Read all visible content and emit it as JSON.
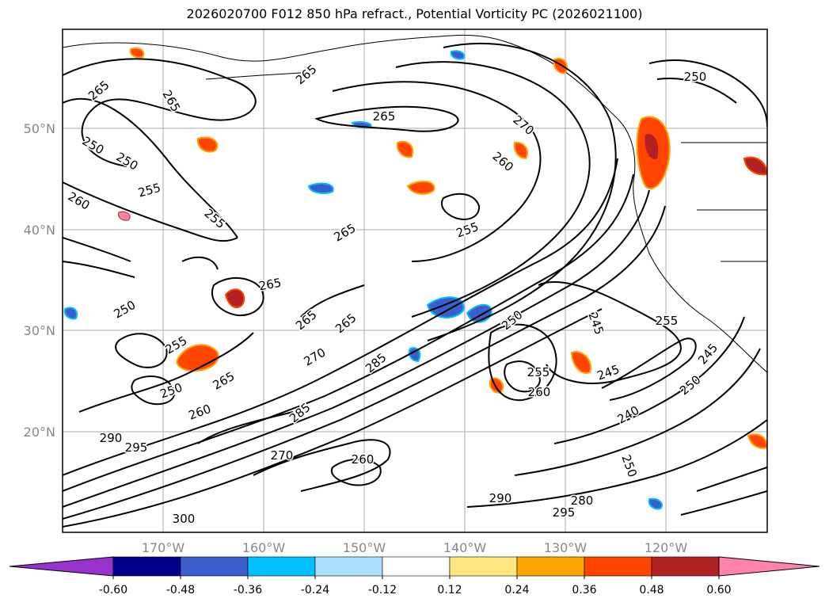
{
  "title": "2026020700 F012 850 hPa refract., Potential Vorticity PC (2026021100)",
  "latitude_labels": [
    "50°N",
    "40°N",
    "30°N",
    "20°N"
  ],
  "longitude_labels": [
    "170°W",
    "160°W",
    "150°W",
    "140°W",
    "130°W",
    "120°W"
  ],
  "contour_labels": [
    "265",
    "265",
    "265",
    "265",
    "270",
    "260",
    "255",
    "255",
    "250",
    "250",
    "255",
    "260",
    "265",
    "265",
    "265",
    "265",
    "270",
    "255",
    "250",
    "250",
    "260",
    "265",
    "285",
    "285",
    "290",
    "295",
    "270",
    "260",
    "300",
    "290",
    "295",
    "280",
    "250",
    "245",
    "245",
    "255",
    "250",
    "240",
    "245",
    "250",
    "255",
    "260",
    "250"
  ],
  "colorbar": {
    "ticks": [
      "-0.60",
      "-0.48",
      "-0.36",
      "-0.24",
      "-0.12",
      "0.12",
      "0.24",
      "0.36",
      "0.48",
      "0.60"
    ],
    "colors": [
      "#9932CC",
      "#00008B",
      "#3A5FCD",
      "#00BFFF",
      "#ADDFFF",
      "#FFFFFF",
      "#FFE680",
      "#FFA500",
      "#FF4500",
      "#B22222",
      "#FF82AB"
    ]
  }
}
